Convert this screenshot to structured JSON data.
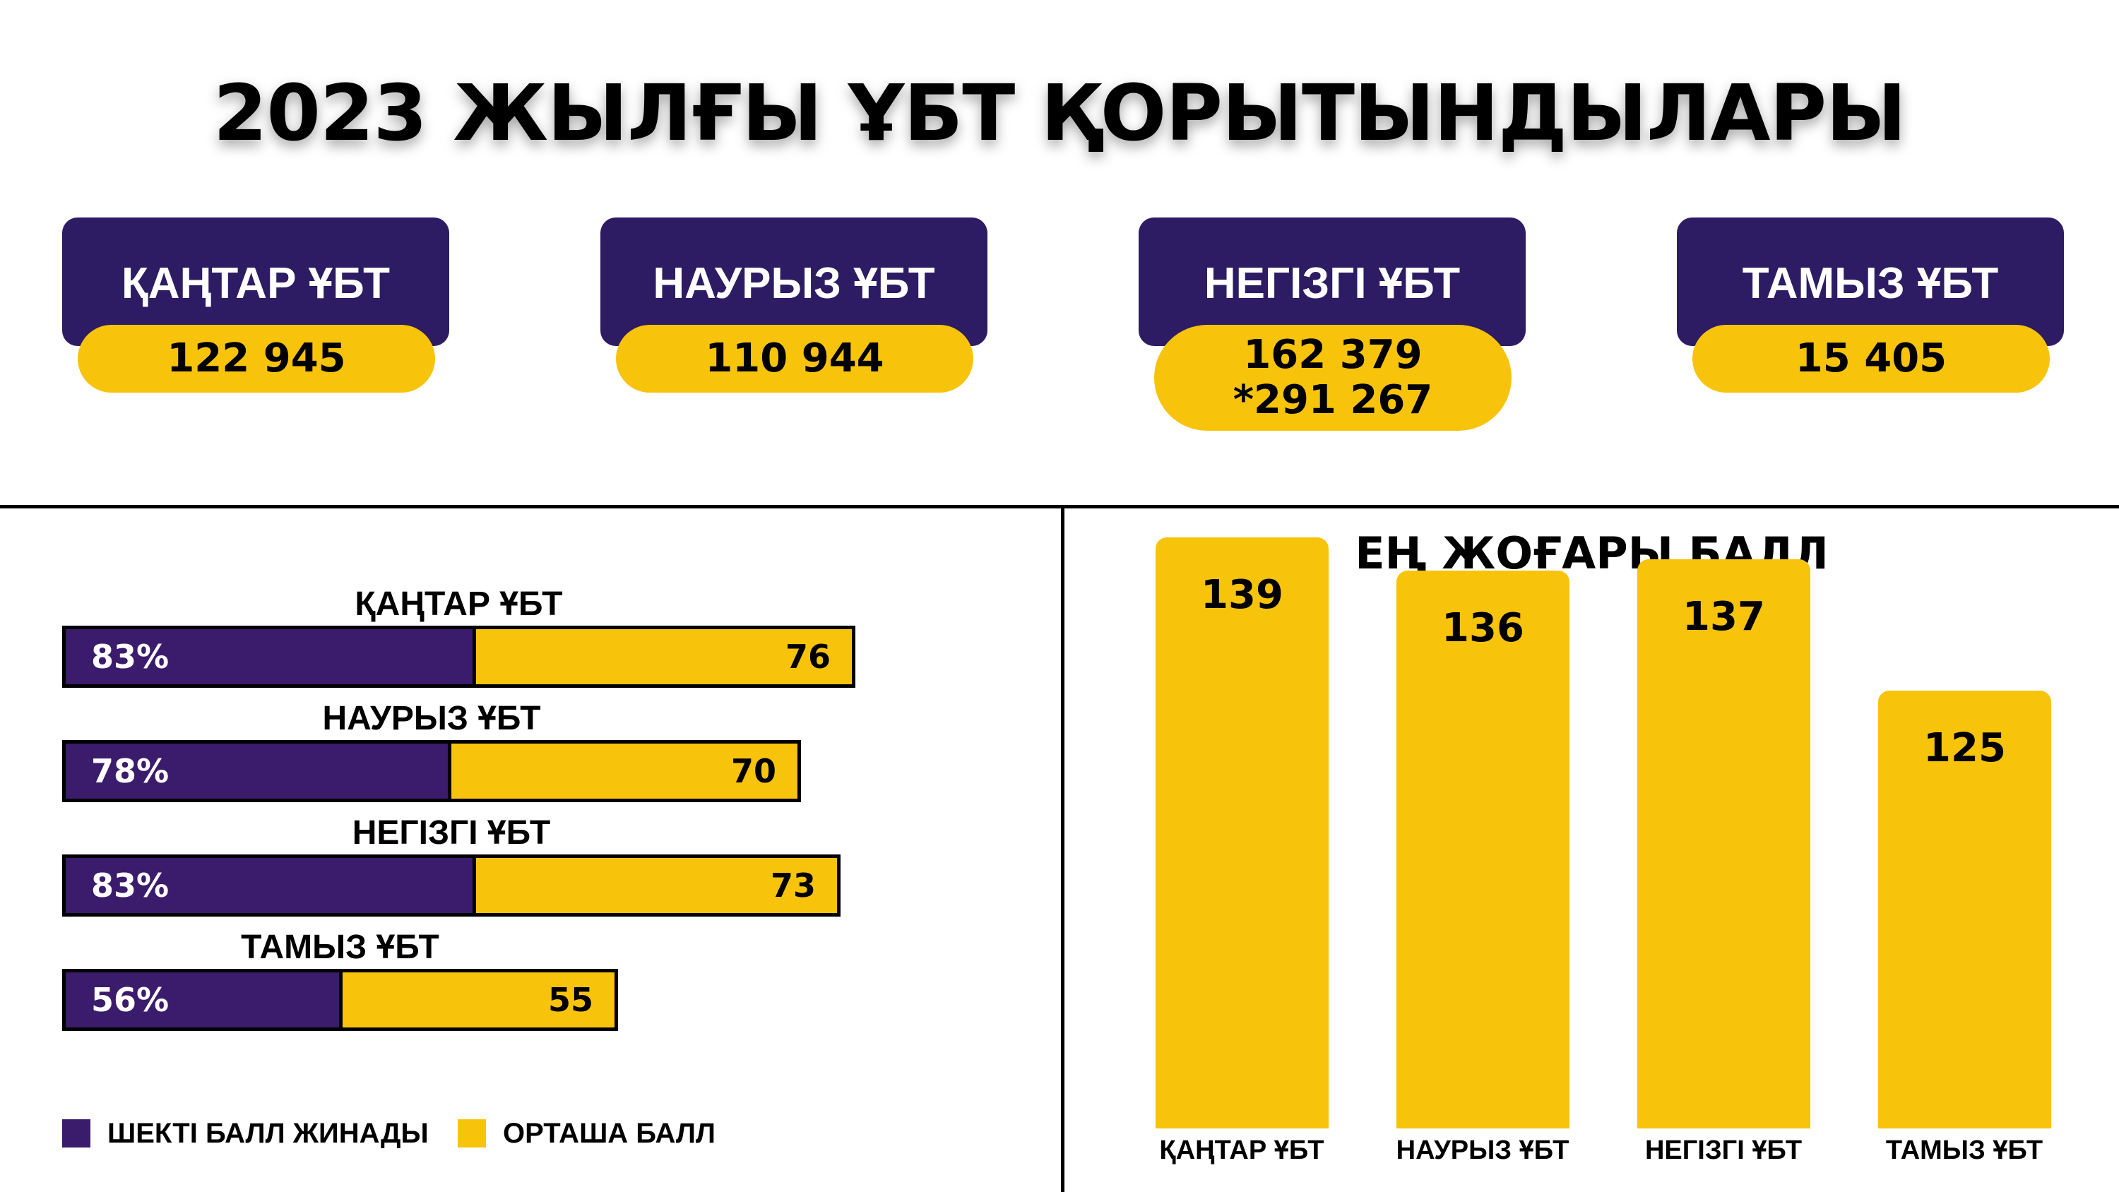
{
  "title": "2023 ЖЫЛҒЫ ҰБТ ҚОРЫТЫНДЫЛАРЫ",
  "summary_cards": [
    {
      "label": "ҚАҢТАР ҰБТ",
      "value": "122 945",
      "extra": ""
    },
    {
      "label": "НАУРЫЗ ҰБТ",
      "value": "110 944",
      "extra": ""
    },
    {
      "label": "НЕГІЗГІ ҰБТ",
      "value": "162 379",
      "extra": "*291 267"
    },
    {
      "label": "ТАМЫЗ ҰБТ",
      "value": "15 405",
      "extra": ""
    }
  ],
  "colors": {
    "purple_dark": "#2d1c63",
    "purple_bar": "#3b1b6b",
    "yellow": "#f8c30b"
  },
  "chart_data": [
    {
      "type": "bar",
      "orientation": "horizontal",
      "stacked": true,
      "categories": [
        "ҚАҢТАР ҰБТ",
        "НАУРЫЗ ҰБТ",
        "НЕГІЗГІ ҰБТ",
        "ТАМЫЗ ҰБТ"
      ],
      "series": [
        {
          "name": "ШЕКТІ БАЛЛ ЖИНАДЫ",
          "values": [
            83,
            78,
            83,
            56
          ],
          "labels": [
            "83%",
            "78%",
            "83%",
            "56%"
          ],
          "color": "#3b1b6b"
        },
        {
          "name": "ОРТАША БАЛЛ",
          "values": [
            76,
            70,
            73,
            55
          ],
          "labels": [
            "76",
            "70",
            "73",
            "55"
          ],
          "color": "#f8c30b"
        }
      ],
      "legend": "bottom-left"
    },
    {
      "type": "bar",
      "orientation": "vertical",
      "title": "ЕҢ ЖОҒАРЫ БАЛЛ",
      "categories": [
        "ҚАҢТАР ҰБТ",
        "НАУРЫЗ ҰБТ",
        "НЕГІЗГІ ҰБТ",
        "ТАМЫЗ ҰБТ"
      ],
      "values": [
        139,
        136,
        137,
        125
      ],
      "color": "#f8c30b"
    }
  ]
}
